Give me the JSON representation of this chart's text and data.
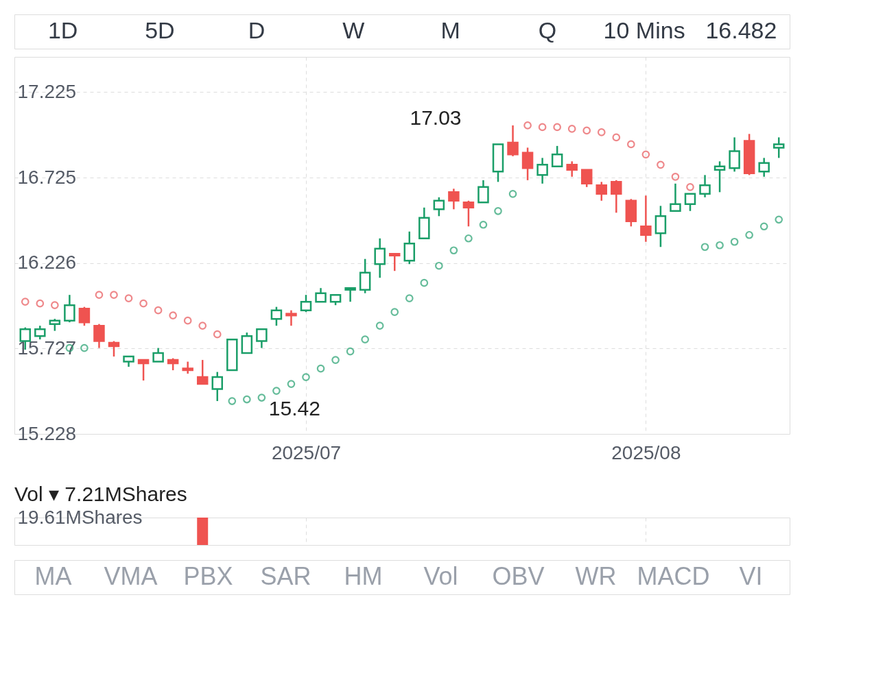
{
  "chart_data": [
    {
      "type": "candlestick",
      "categories": [
        null,
        null,
        null,
        null,
        null,
        null,
        null,
        null,
        null,
        null,
        null,
        null,
        null,
        null,
        null,
        null,
        null,
        null,
        null,
        "2025/07",
        null,
        null,
        null,
        null,
        null,
        null,
        null,
        null,
        null,
        null,
        null,
        null,
        null,
        null,
        null,
        null,
        null,
        null,
        null,
        null,
        null,
        null,
        "2025/08",
        null,
        null,
        null,
        null,
        null,
        null,
        null,
        null,
        null
      ],
      "ohlc": [
        [
          15.77,
          15.85,
          15.72,
          15.84
        ],
        [
          15.8,
          15.86,
          15.78,
          15.84
        ],
        [
          15.87,
          15.9,
          15.83,
          15.89
        ],
        [
          15.89,
          16.04,
          15.88,
          15.98
        ],
        [
          15.96,
          15.97,
          15.86,
          15.88
        ],
        [
          15.86,
          15.87,
          15.73,
          15.77
        ],
        [
          15.76,
          15.77,
          15.68,
          15.74
        ],
        [
          15.65,
          15.68,
          15.62,
          15.68
        ],
        [
          15.66,
          15.66,
          15.54,
          15.64
        ],
        [
          15.65,
          15.73,
          15.65,
          15.7
        ],
        [
          15.66,
          15.67,
          15.6,
          15.64
        ],
        [
          15.61,
          15.65,
          15.58,
          15.6
        ],
        [
          15.56,
          15.66,
          15.52,
          15.52
        ],
        [
          15.49,
          15.59,
          15.42,
          15.56
        ],
        [
          15.6,
          15.78,
          15.6,
          15.78
        ],
        [
          15.7,
          15.82,
          15.7,
          15.8
        ],
        [
          15.77,
          15.84,
          15.73,
          15.84
        ],
        [
          15.9,
          15.97,
          15.86,
          15.95
        ],
        [
          15.93,
          15.95,
          15.86,
          15.92
        ],
        [
          15.95,
          16.04,
          15.94,
          16.0
        ],
        [
          16.0,
          16.08,
          16.0,
          16.05
        ],
        [
          16.0,
          16.04,
          15.98,
          16.04
        ],
        [
          16.07,
          16.08,
          16.0,
          16.08
        ],
        [
          16.07,
          16.25,
          16.05,
          16.17
        ],
        [
          16.22,
          16.37,
          16.14,
          16.31
        ],
        [
          16.28,
          16.28,
          16.18,
          16.27
        ],
        [
          16.24,
          16.41,
          16.22,
          16.34
        ],
        [
          16.37,
          16.55,
          16.37,
          16.49
        ],
        [
          16.54,
          16.61,
          16.5,
          16.59
        ],
        [
          16.64,
          16.66,
          16.54,
          16.59
        ],
        [
          16.58,
          16.59,
          16.44,
          16.55
        ],
        [
          16.58,
          16.71,
          16.58,
          16.67
        ],
        [
          16.76,
          16.92,
          16.7,
          16.92
        ],
        [
          16.93,
          17.03,
          16.85,
          16.86
        ],
        [
          16.87,
          16.9,
          16.71,
          16.78
        ],
        [
          16.74,
          16.84,
          16.69,
          16.8
        ],
        [
          16.79,
          16.91,
          16.79,
          16.86
        ],
        [
          16.8,
          16.82,
          16.73,
          16.77
        ],
        [
          16.77,
          16.77,
          16.67,
          16.69
        ],
        [
          16.68,
          16.7,
          16.59,
          16.63
        ],
        [
          16.7,
          16.71,
          16.52,
          16.63
        ],
        [
          16.59,
          16.6,
          16.44,
          16.47
        ],
        [
          16.44,
          16.62,
          16.35,
          16.39
        ],
        [
          16.4,
          16.56,
          16.32,
          16.5
        ],
        [
          16.53,
          16.69,
          16.53,
          16.57
        ],
        [
          16.57,
          16.63,
          16.53,
          16.63
        ],
        [
          16.63,
          16.74,
          16.61,
          16.68
        ],
        [
          16.77,
          16.82,
          16.64,
          16.79
        ],
        [
          16.78,
          16.96,
          16.76,
          16.88
        ],
        [
          16.94,
          16.98,
          16.74,
          16.75
        ],
        [
          16.76,
          16.84,
          16.73,
          16.81
        ],
        [
          16.9,
          16.96,
          16.84,
          16.92
        ]
      ],
      "colors": [
        "#1a9e68",
        "#1a9e68",
        "#1a9e68",
        "#1a9e68",
        "#ef5350",
        "#ef5350",
        "#ef5350",
        "#1a9e68",
        "#ef5350",
        "#1a9e68",
        "#ef5350",
        "#ef5350",
        "#ef5350",
        "#1a9e68",
        "#1a9e68",
        "#1a9e68",
        "#1a9e68",
        "#1a9e68",
        "#ef5350",
        "#1a9e68",
        "#1a9e68",
        "#1a9e68",
        "#1a9e68",
        "#1a9e68",
        "#1a9e68",
        "#ef5350",
        "#1a9e68",
        "#1a9e68",
        "#1a9e68",
        "#ef5350",
        "#ef5350",
        "#1a9e68",
        "#1a9e68",
        "#ef5350",
        "#ef5350",
        "#1a9e68",
        "#1a9e68",
        "#ef5350",
        "#ef5350",
        "#ef5350",
        "#ef5350",
        "#ef5350",
        "#ef5350",
        "#1a9e68",
        "#1a9e68",
        "#1a9e68",
        "#1a9e68",
        "#1a9e68",
        "#1a9e68",
        "#ef5350",
        "#1a9e68",
        "#1a9e68"
      ],
      "series": [
        {
          "type": "scatter",
          "color": "#e8565a",
          "values": [
            16.0,
            15.99,
            15.98,
            null,
            null,
            16.04,
            16.04,
            16.02,
            15.99,
            15.95,
            15.92,
            15.89,
            15.86,
            15.81,
            null,
            null,
            null,
            null,
            null,
            null,
            null,
            null,
            null,
            null,
            null,
            null,
            null,
            null,
            null,
            null,
            null,
            null,
            null,
            null,
            17.03,
            17.02,
            17.02,
            17.01,
            17.0,
            16.99,
            16.96,
            16.92,
            16.86,
            16.8,
            16.73,
            16.67,
            null,
            null,
            null,
            null,
            null,
            null
          ]
        },
        {
          "type": "scatter",
          "color": "#25a070",
          "values": [
            null,
            null,
            null,
            15.73,
            15.73,
            null,
            null,
            null,
            null,
            null,
            null,
            null,
            null,
            null,
            15.42,
            15.43,
            15.44,
            15.48,
            15.52,
            15.56,
            15.61,
            15.66,
            15.71,
            15.78,
            15.86,
            15.94,
            16.02,
            16.11,
            16.21,
            16.3,
            16.37,
            16.45,
            16.53,
            16.63,
            null,
            null,
            null,
            null,
            null,
            null,
            null,
            null,
            null,
            null,
            null,
            null,
            16.32,
            16.33,
            16.35,
            16.39,
            16.44,
            16.48
          ]
        }
      ],
      "marker": "circle",
      "ylim": [
        15.228,
        17.43
      ],
      "yticks": [
        15.228,
        15.727,
        16.226,
        16.725,
        17.225
      ],
      "grid": true,
      "annotations": [
        "1D",
        "5D",
        "D",
        "W",
        "M",
        "Q",
        "10 Mins",
        "16.482",
        "17.03",
        "15.42"
      ]
    },
    {
      "type": "bar",
      "title": "Vol ▾ 7.21MShares",
      "categories": [
        null,
        null,
        null,
        null,
        null,
        null,
        null,
        null,
        null,
        null,
        null,
        null,
        null,
        null,
        null,
        null,
        null,
        null,
        null,
        "2025/07",
        null,
        null,
        null,
        null,
        null,
        null,
        null,
        null,
        null,
        null,
        null,
        null,
        null,
        null,
        null,
        null,
        null,
        null,
        null,
        null,
        null,
        null,
        "2025/08",
        null,
        null,
        null,
        null,
        null,
        null,
        null,
        null,
        null
      ],
      "values": [
        null,
        null,
        null,
        null,
        null,
        null,
        null,
        null,
        null,
        null,
        null,
        null,
        19.61,
        null,
        null,
        null,
        null,
        null,
        null,
        null,
        null,
        null,
        null,
        null,
        null,
        null,
        null,
        null,
        null,
        null,
        null,
        null,
        null,
        null,
        null,
        null,
        null,
        null,
        null,
        null,
        null,
        null,
        null,
        null,
        null,
        null,
        null,
        null,
        null,
        null,
        null,
        null
      ],
      "color": "#ef5350",
      "ylim": [
        0,
        19.61
      ],
      "yticks": [
        {
          "value": 19.61,
          "label": "19.61MShares"
        }
      ],
      "grid": "x",
      "tick_labels": "y",
      "annotations": [
        "MA",
        "VMA",
        "PBX",
        "SAR",
        "HM",
        "Vol",
        "OBV",
        "WR",
        "MACD",
        "VI"
      ]
    }
  ]
}
